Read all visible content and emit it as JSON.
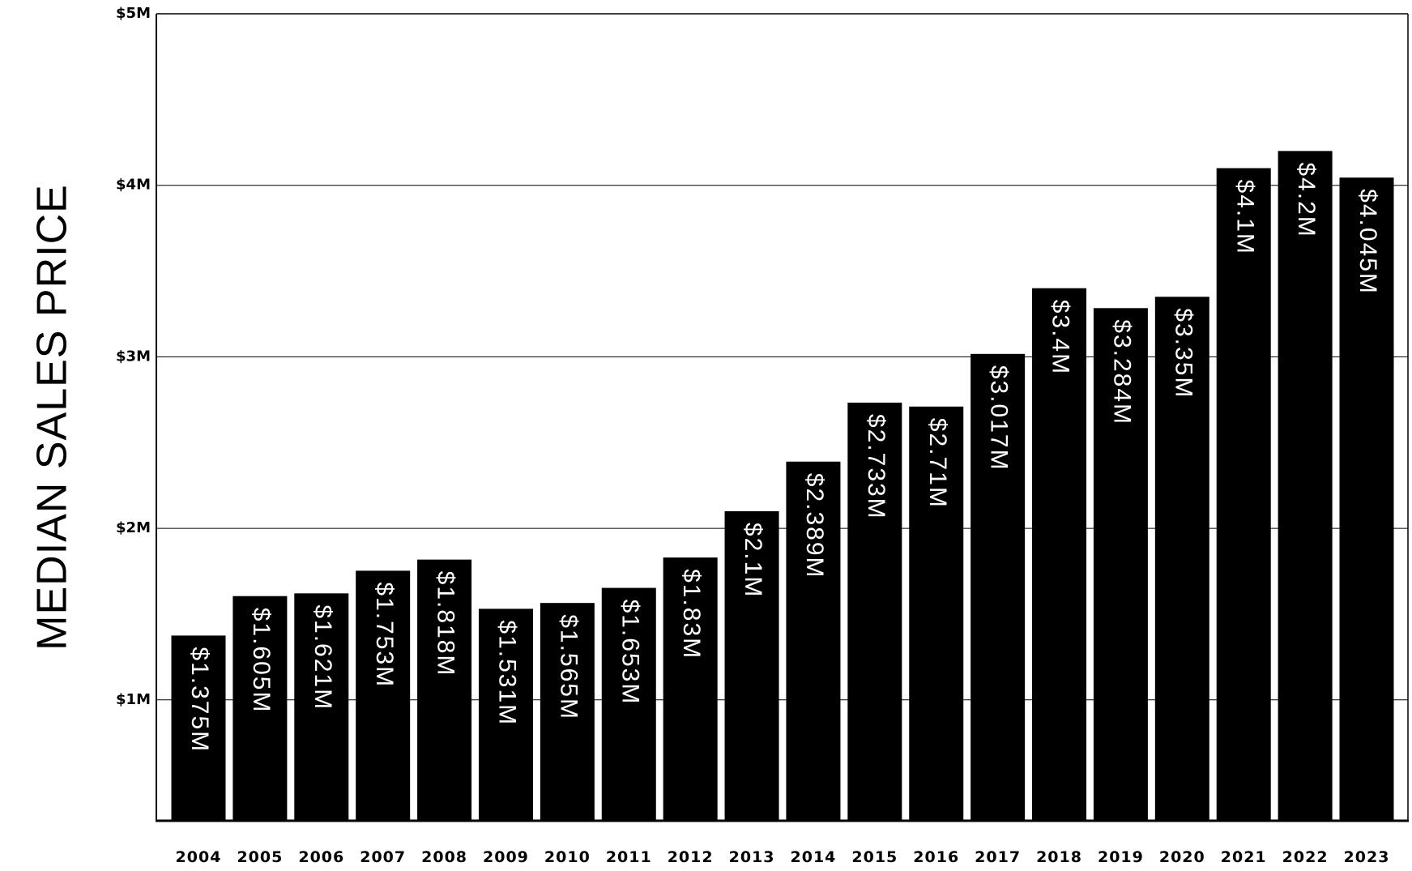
{
  "chart_data": {
    "type": "bar",
    "title": "",
    "xlabel": "",
    "ylabel": "MEDIAN SALES PRICE",
    "categories": [
      "2004",
      "2005",
      "2006",
      "2007",
      "2008",
      "2009",
      "2010",
      "2011",
      "2012",
      "2013",
      "2014",
      "2015",
      "2016",
      "2017",
      "2018",
      "2019",
      "2020",
      "2021",
      "2022",
      "2023"
    ],
    "values": [
      1.375,
      1.605,
      1.621,
      1.753,
      1.818,
      1.531,
      1.565,
      1.653,
      1.83,
      2.1,
      2.389,
      2.733,
      2.71,
      3.017,
      3.4,
      3.284,
      3.35,
      4.1,
      4.2,
      4.045
    ],
    "data_labels": [
      "$1.375M",
      "$1.605M",
      "$1.621M",
      "$1.753M",
      "$1.818M",
      "$1.531M",
      "$1.565M",
      "$1.653M",
      "$1.83M",
      "$2.1M",
      "$2.389M",
      "$2.733M",
      "$2.71M",
      "$3.017M",
      "$3.4M",
      "$3.284M",
      "$3.35M",
      "$4.1M",
      "$4.2M",
      "$4.045M"
    ],
    "yticks": [
      {
        "value": 1,
        "label": "$1M"
      },
      {
        "value": 2,
        "label": "$2M"
      },
      {
        "value": 3,
        "label": "$3M"
      },
      {
        "value": 4,
        "label": "$4M"
      },
      {
        "value": 5,
        "label": "$5M"
      }
    ],
    "ylim": [
      0.3,
      5
    ],
    "grid": true,
    "legend": "none",
    "bar_color": "#000000",
    "label_color": "#ffffff"
  }
}
